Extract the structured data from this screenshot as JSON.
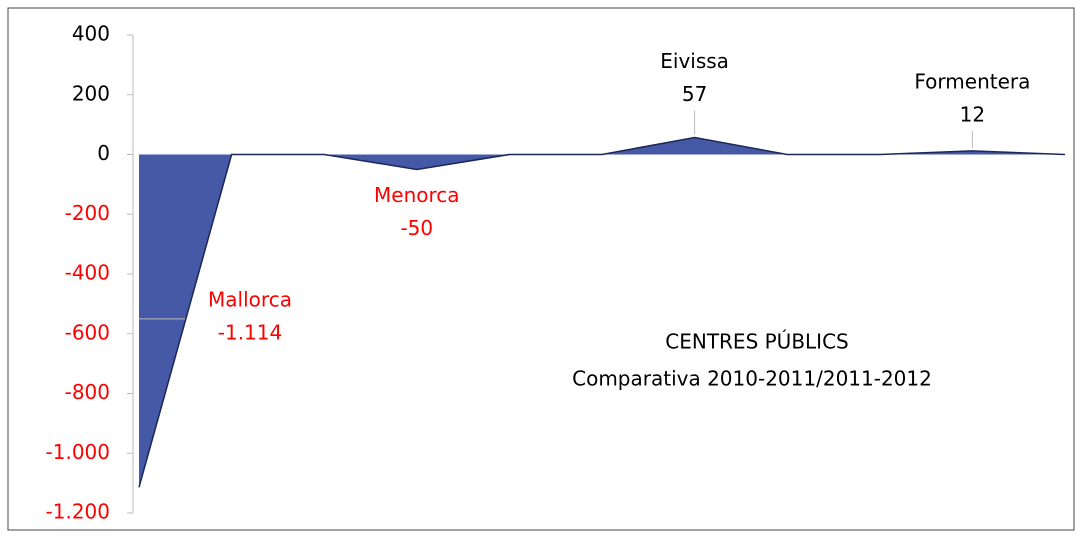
{
  "chart_data": {
    "type": "area",
    "categories": [
      null,
      null,
      null,
      null,
      null,
      null,
      null,
      null,
      null,
      null,
      null
    ],
    "series": [
      {
        "color": "#4559a7",
        "values": [
          -1114,
          0,
          0,
          -50,
          0,
          0,
          57,
          0,
          0,
          12,
          0
        ],
        "point_names": [
          "Mallorca",
          null,
          null,
          "Menorca",
          null,
          null,
          "Eivissa",
          null,
          null,
          "Formentera",
          null
        ],
        "value_labels": [
          "-1.114",
          null,
          null,
          "-50",
          null,
          null,
          "57",
          null,
          null,
          "12",
          null
        ]
      }
    ],
    "annotations": [
      "CENTRES PÚBLICS",
      "Comparativa 2010-2011/2011-2012"
    ],
    "ylim": [
      -1200,
      400
    ],
    "yticks": [
      {
        "value": -1200,
        "label": "-1.200"
      },
      {
        "value": -1000,
        "label": "-1.000"
      },
      -800,
      -600,
      -400,
      -200,
      0,
      200,
      400
    ],
    "negative_color": "#ff0000",
    "grid": false
  }
}
